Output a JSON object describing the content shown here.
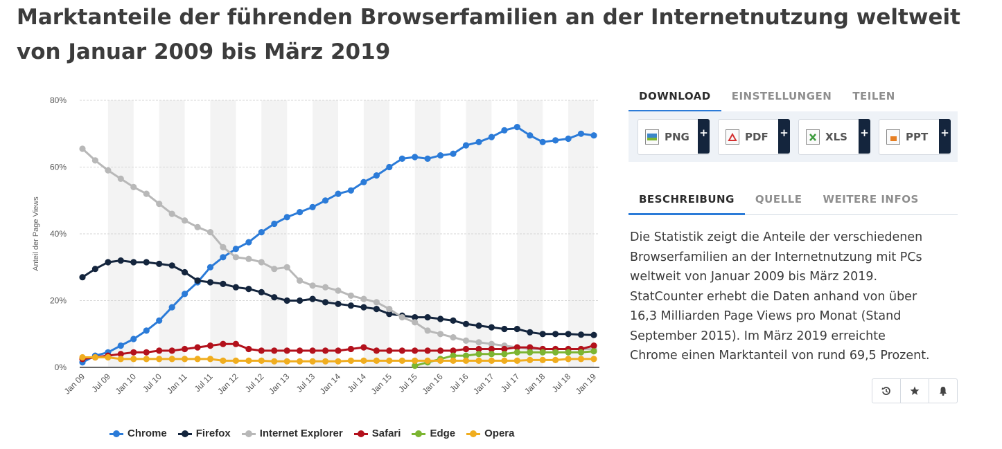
{
  "title": "Marktanteile der führenden Browserfamilien an der Internetnutzung weltweit von Januar 2009 bis März 2019",
  "tabs_top": [
    {
      "label": "DOWNLOAD"
    },
    {
      "label": "EINSTELLUNGEN"
    },
    {
      "label": "TEILEN"
    }
  ],
  "downloads": [
    {
      "label": "PNG",
      "icon": "png-file-icon",
      "color": "#3a86c8"
    },
    {
      "label": "PDF",
      "icon": "pdf-file-icon",
      "color": "#d32f2f"
    },
    {
      "label": "XLS",
      "icon": "xls-file-icon",
      "color": "#3c9a3c"
    },
    {
      "label": "PPT",
      "icon": "ppt-file-icon",
      "color": "#e67e22"
    }
  ],
  "plus_label": "+",
  "tabs_info": [
    {
      "label": "BESCHREIBUNG"
    },
    {
      "label": "QUELLE"
    },
    {
      "label": "WEITERE INFOS"
    }
  ],
  "description": "Die Statistik zeigt die Anteile der verschiedenen Browserfamilien an der Internetnutzung mit PCs weltweit von Januar 2009 bis März 2019. StatCounter erhebt die Daten anhand von über 16,3 Milliarden Page Views pro Monat (Stand September 2015). Im März 2019 erreichte Chrome einen Marktanteil von rund 69,5 Prozent.",
  "actions": [
    {
      "icon": "history-icon"
    },
    {
      "icon": "star-icon"
    },
    {
      "icon": "bell-icon"
    }
  ],
  "chart_data": {
    "type": "line",
    "title": "Marktanteile der führenden Browserfamilien an der Internetnutzung weltweit von Januar 2009 bis März 2019",
    "xlabel": "",
    "ylabel": "Anteil der Page Views",
    "ylim": [
      0,
      80
    ],
    "yticks": [
      0,
      20,
      40,
      60,
      80
    ],
    "ytick_labels": [
      "0%",
      "20%",
      "40%",
      "60%",
      "80%"
    ],
    "x_start": "Jan 09",
    "x_count": 41,
    "x_step": "quarter",
    "xtick_labels": [
      "Jan 09",
      "Jul 09",
      "Jan 10",
      "Jul 10",
      "Jan 11",
      "Jul 11",
      "Jan 12",
      "Jul 12",
      "Jan 13",
      "Jul 13",
      "Jan 14",
      "Jul 14",
      "Jan 15",
      "Jul 15",
      "Jan 16",
      "Jul 16",
      "Jan 17",
      "Jul 17",
      "Jan 18",
      "Jul 18",
      "Jan 19"
    ],
    "grid": true,
    "legend_position": "bottom",
    "series": [
      {
        "name": "Chrome",
        "color": "#2b7bd8",
        "start": 0,
        "values": [
          1.5,
          3.5,
          4.5,
          6.5,
          8.5,
          11,
          14,
          18,
          22,
          25.5,
          30,
          33,
          35.5,
          37.5,
          40.5,
          43,
          45,
          46.5,
          48,
          50,
          52,
          53,
          55.5,
          57.5,
          60,
          62.5,
          63,
          62.5,
          63.5,
          64,
          66.5,
          67.5,
          69,
          71,
          72,
          69.5,
          67.5,
          68,
          68.5,
          70,
          69.5
        ]
      },
      {
        "name": "Firefox",
        "color": "#14253d",
        "start": 0,
        "values": [
          27,
          29.5,
          31.5,
          32,
          31.5,
          31.5,
          31,
          30.5,
          28.5,
          26,
          25.5,
          25,
          24,
          23.5,
          22.5,
          21,
          20,
          20,
          20.5,
          19.5,
          19,
          18.5,
          18,
          17.5,
          16,
          15.5,
          15,
          15,
          14.5,
          14,
          13,
          12.5,
          12,
          11.5,
          11.5,
          10.5,
          10,
          10,
          10,
          9.8,
          9.7
        ]
      },
      {
        "name": "Internet Explorer",
        "color": "#b8b8b8",
        "start": 0,
        "values": [
          65.5,
          62,
          59,
          56.5,
          54,
          52,
          49,
          46,
          44,
          42,
          40.5,
          36,
          33,
          32.5,
          31.5,
          29.5,
          30,
          26,
          24.5,
          24,
          23,
          21.5,
          20.5,
          19.5,
          17.5,
          15,
          13.5,
          11,
          10,
          9,
          8,
          7.5,
          7,
          6.5,
          6,
          5.5,
          5.5,
          5.5,
          5.5,
          5.5,
          5.5
        ]
      },
      {
        "name": "Safari",
        "color": "#b3111c",
        "start": 0,
        "values": [
          2.5,
          3,
          3.5,
          4,
          4.5,
          4.5,
          5,
          5,
          5.5,
          6,
          6.5,
          7,
          7,
          5.5,
          5,
          5,
          5,
          5,
          5,
          5,
          5,
          5.5,
          6,
          5,
          5,
          5,
          5,
          5,
          5,
          5,
          5.5,
          5.5,
          5.5,
          5.5,
          6,
          6,
          5.5,
          5.5,
          5.5,
          5.5,
          6.5
        ]
      },
      {
        "name": "Edge",
        "color": "#7cb532",
        "start": 26,
        "values": [
          0.5,
          1.5,
          2.5,
          3.5,
          3.5,
          4,
          4,
          4,
          4.5,
          4.5,
          4.5,
          4.5,
          4.5,
          4.5,
          4.8
        ]
      },
      {
        "name": "Opera",
        "color": "#f0ad1f",
        "start": 0,
        "values": [
          3,
          3,
          3,
          2.5,
          2.5,
          2.5,
          2.5,
          2.5,
          2.5,
          2.5,
          2.5,
          2,
          2,
          2,
          2,
          1.8,
          1.8,
          1.8,
          1.8,
          1.8,
          1.8,
          2,
          2,
          2,
          2,
          2,
          2,
          2,
          2,
          2,
          2,
          2,
          2,
          2,
          2,
          2.2,
          2.2,
          2.2,
          2.5,
          2.5,
          2.5
        ]
      }
    ]
  }
}
